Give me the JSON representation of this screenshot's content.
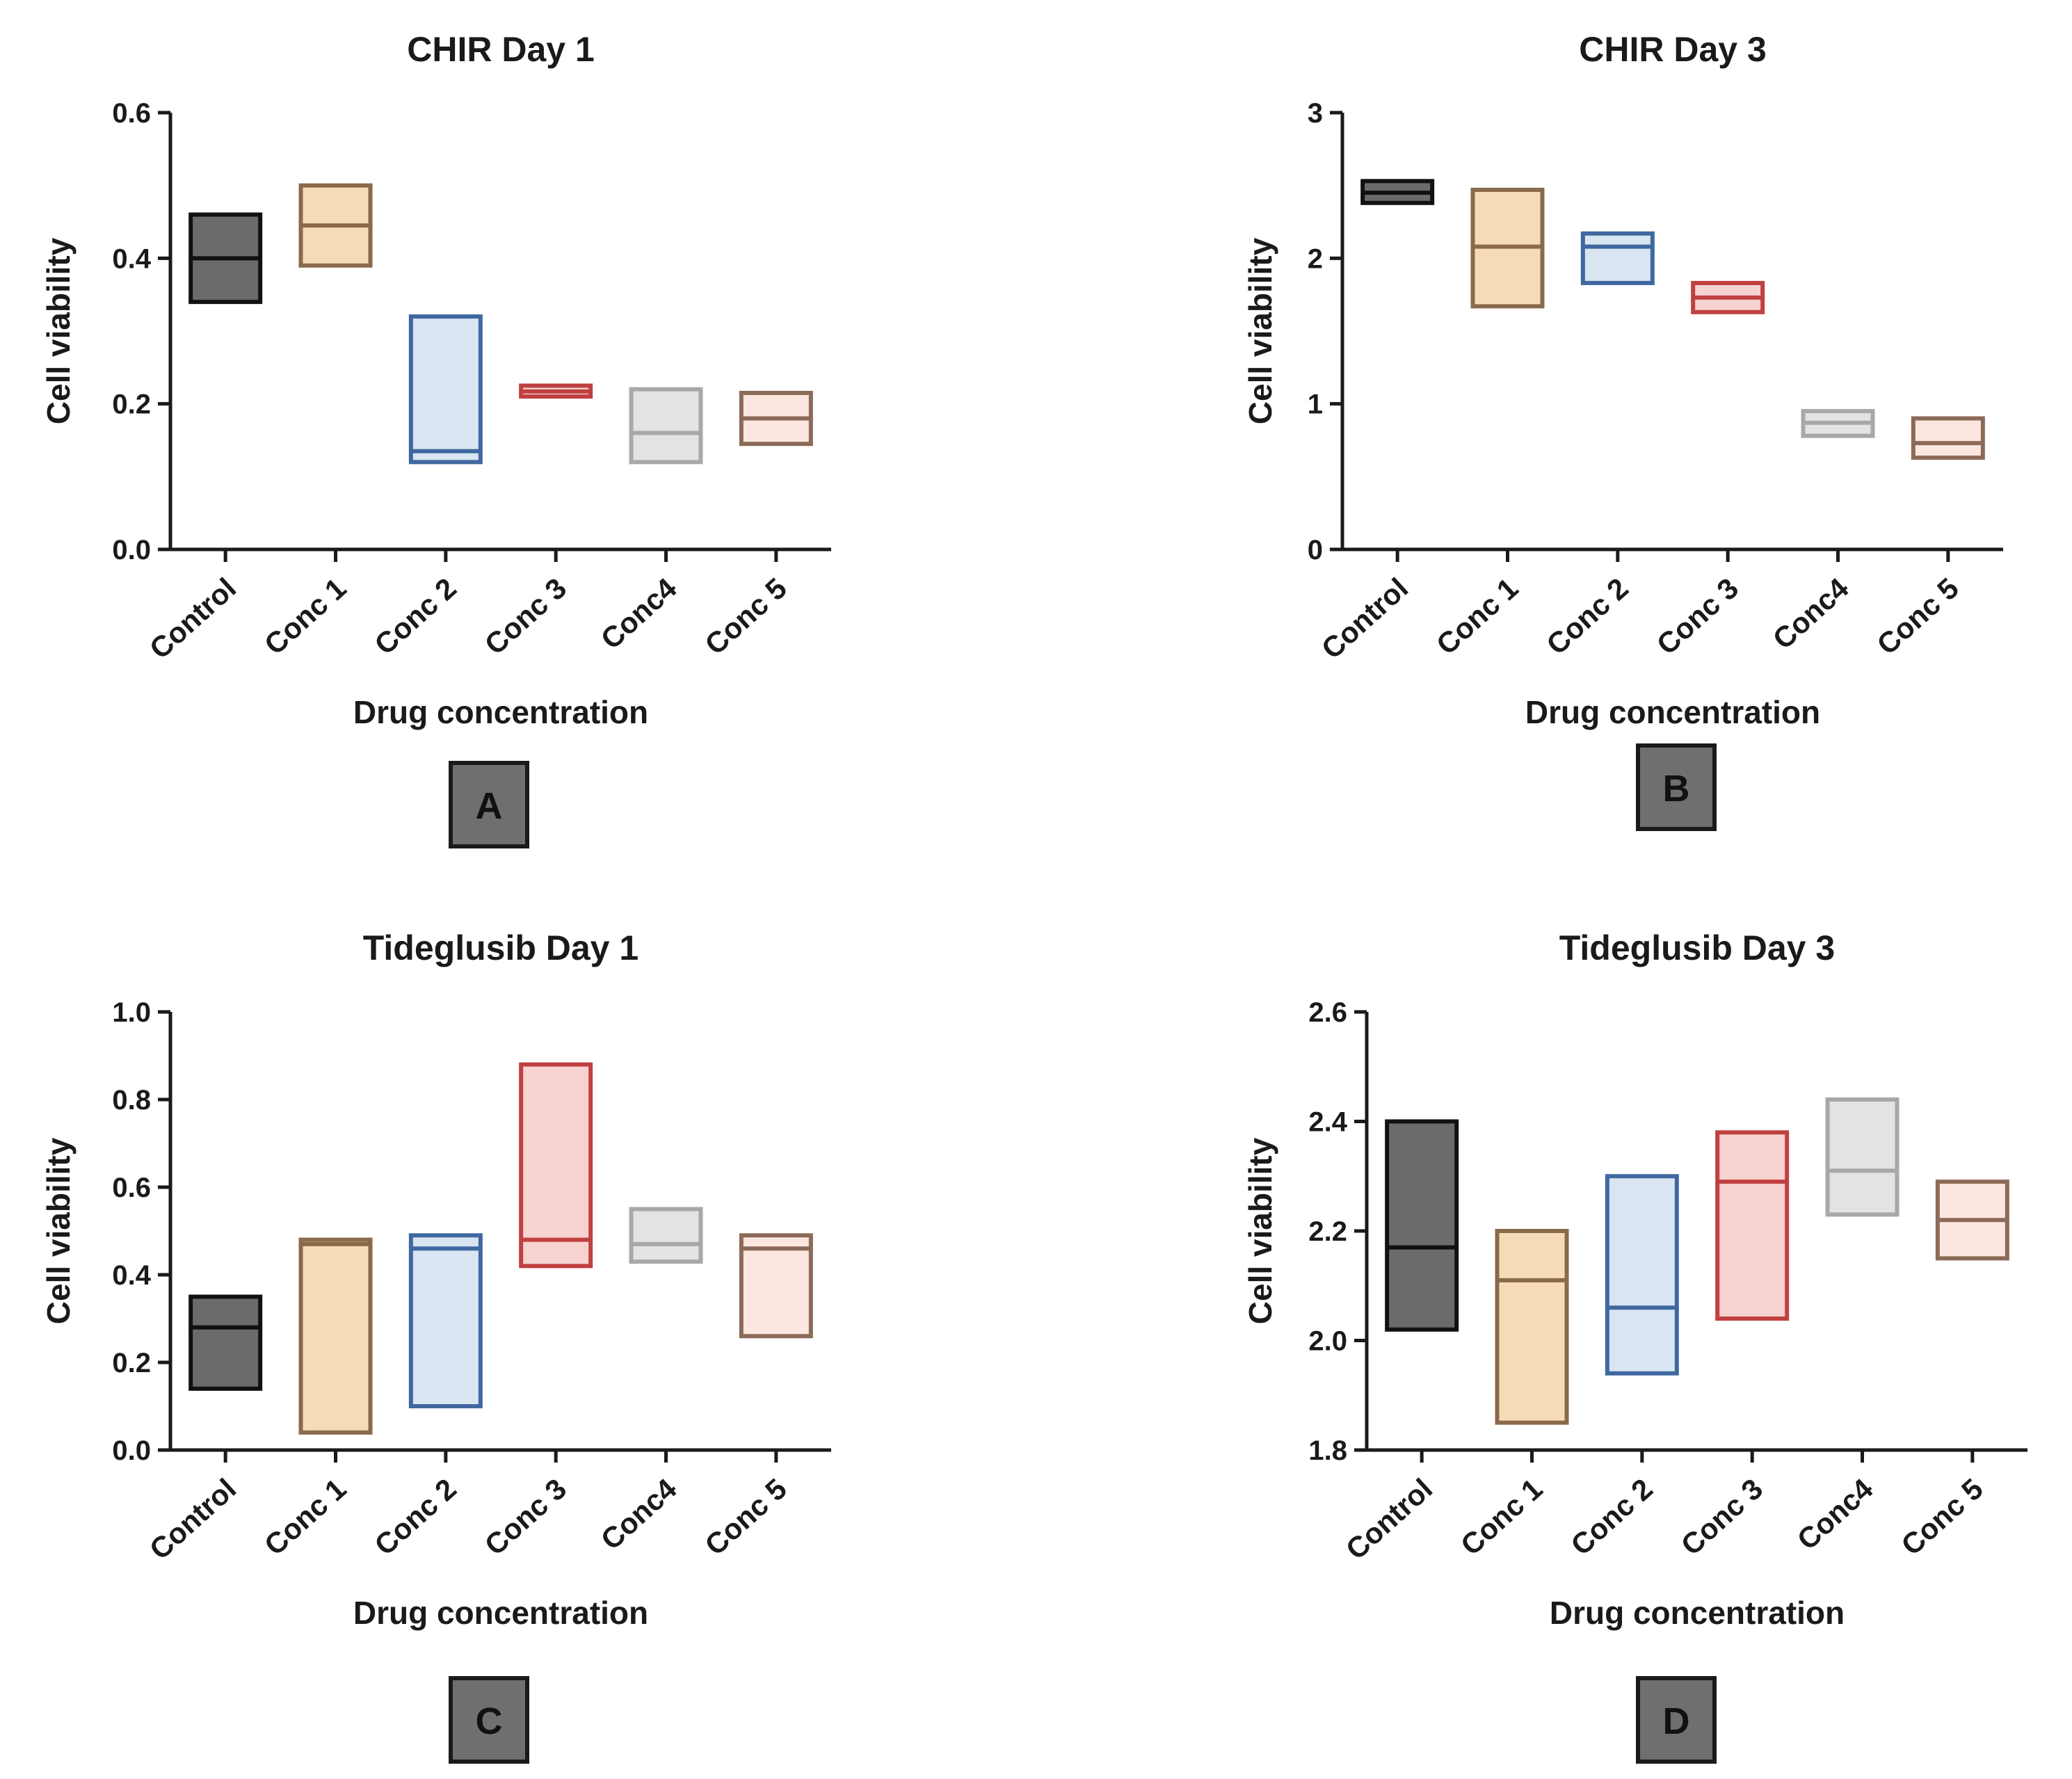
{
  "figure": {
    "description_labels": [
      "A",
      "B",
      "C",
      "D"
    ]
  },
  "chart_data": [
    {
      "type": "floating-bar",
      "panel_label": "A",
      "title": "CHIR Day 1",
      "xlabel": "Drug concentration",
      "ylabel": "Cell viability",
      "ylim": [
        0,
        0.6
      ],
      "yticks": [
        0.0,
        0.2,
        0.4,
        0.6
      ],
      "ytick_labels": [
        "0.0",
        "0.2",
        "0.4",
        "0.6"
      ],
      "categories": [
        "Control",
        "Conc 1",
        "Conc 2",
        "Conc 3",
        "Conc4",
        "Conc 5"
      ],
      "min": [
        0.34,
        0.39,
        0.12,
        0.21,
        0.12,
        0.145
      ],
      "max": [
        0.46,
        0.5,
        0.32,
        0.225,
        0.22,
        0.215
      ],
      "mean": [
        0.4,
        0.445,
        0.135,
        0.217,
        0.16,
        0.18
      ]
    },
    {
      "type": "floating-bar",
      "panel_label": "B",
      "title": "CHIR Day 3",
      "xlabel": "Drug concentration",
      "ylabel": "Cell viability",
      "ylim": [
        0,
        3
      ],
      "yticks": [
        0,
        1,
        2,
        3
      ],
      "ytick_labels": [
        "0",
        "1",
        "2",
        "3"
      ],
      "categories": [
        "Control",
        "Conc 1",
        "Conc 2",
        "Conc 3",
        "Conc4",
        "Conc 5"
      ],
      "min": [
        2.38,
        1.67,
        1.83,
        1.63,
        0.78,
        0.63
      ],
      "max": [
        2.53,
        2.47,
        2.17,
        1.83,
        0.95,
        0.9
      ],
      "mean": [
        2.45,
        2.08,
        2.08,
        1.73,
        0.87,
        0.73
      ]
    },
    {
      "type": "floating-bar",
      "panel_label": "C",
      "title": "Tideglusib Day 1",
      "xlabel": "Drug concentration",
      "ylabel": "Cell viability",
      "ylim": [
        0,
        1.0
      ],
      "yticks": [
        0.0,
        0.2,
        0.4,
        0.6,
        0.8,
        1.0
      ],
      "ytick_labels": [
        "0.0",
        "0.2",
        "0.4",
        "0.6",
        "0.8",
        "1.0"
      ],
      "categories": [
        "Control",
        "Conc 1",
        "Conc 2",
        "Conc 3",
        "Conc4",
        "Conc 5"
      ],
      "min": [
        0.14,
        0.04,
        0.1,
        0.42,
        0.43,
        0.26
      ],
      "max": [
        0.35,
        0.48,
        0.49,
        0.88,
        0.55,
        0.49
      ],
      "mean": [
        0.28,
        0.47,
        0.46,
        0.48,
        0.47,
        0.46
      ]
    },
    {
      "type": "floating-bar",
      "panel_label": "D",
      "title": "Tideglusib Day 3",
      "xlabel": "Drug concentration",
      "ylabel": "Cell viability",
      "ylim": [
        1.8,
        2.6
      ],
      "yticks": [
        1.8,
        2.0,
        2.2,
        2.4,
        2.6
      ],
      "ytick_labels": [
        "1.8",
        "2.0",
        "2.2",
        "2.4",
        "2.6"
      ],
      "categories": [
        "Control",
        "Conc 1",
        "Conc 2",
        "Conc 3",
        "Conc4",
        "Conc 5"
      ],
      "min": [
        2.02,
        1.85,
        1.94,
        2.04,
        2.23,
        2.15
      ],
      "max": [
        2.4,
        2.2,
        2.3,
        2.38,
        2.44,
        2.29
      ],
      "mean": [
        2.17,
        2.11,
        2.06,
        2.29,
        2.31,
        2.22
      ]
    }
  ],
  "series_colors": [
    {
      "fill": "#6b6b6b",
      "stroke": "#111111"
    },
    {
      "fill": "#f6dcb6",
      "stroke": "#8a6a4a"
    },
    {
      "fill": "#dae5f2",
      "stroke": "#3f68a0"
    },
    {
      "fill": "#f6d3d1",
      "stroke": "#c04040"
    },
    {
      "fill": "#e3e3e3",
      "stroke": "#a8a8a8"
    },
    {
      "fill": "#fbe7df",
      "stroke": "#8c6a58"
    }
  ],
  "badge_style": {
    "fill": "#6f6f6f",
    "stroke": "#1a1a1a"
  }
}
